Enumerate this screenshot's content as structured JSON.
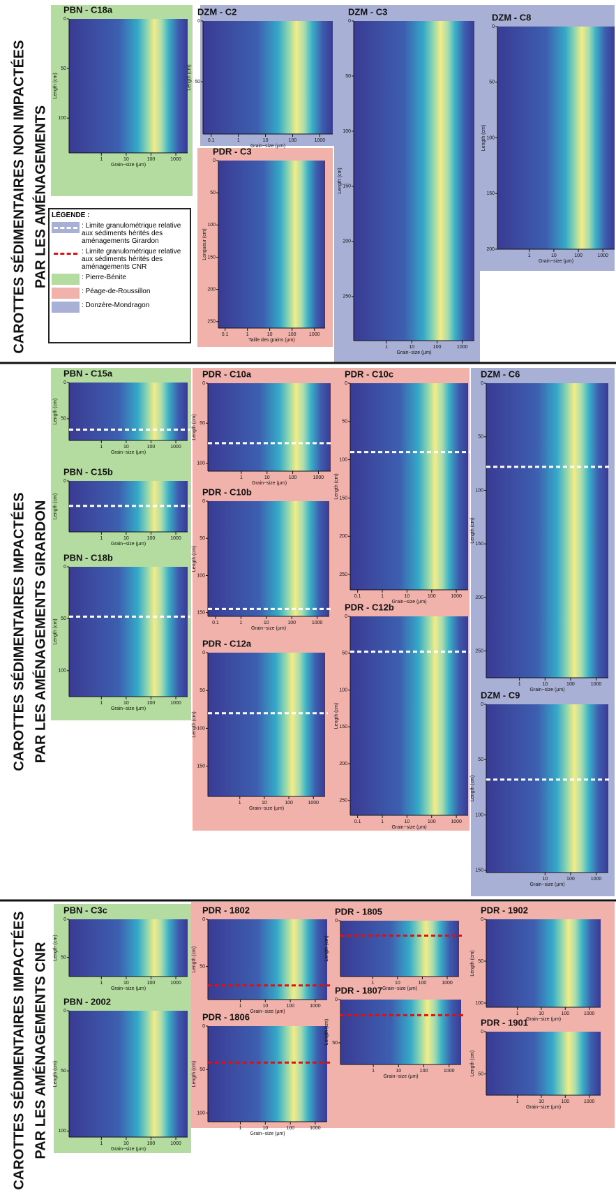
{
  "sections": [
    {
      "lines": [
        "CAROTTES SÉDIMENTAIRES NON IMPACTÉES",
        "PAR LES AMÉNAGEMENTS"
      ]
    },
    {
      "lines": [
        "CAROTTES SÉDIMENTAIRES IMPACTÉES",
        "PAR LES AMÉNAGEMENTS GIRARDON"
      ]
    },
    {
      "lines": [
        "CAROTTES SÉDIMENTAIRES IMPACTÉES",
        "PAR LES AMÉNAGEMENTS CNR"
      ]
    }
  ],
  "legend": {
    "title": "LÉGENDE :",
    "items": [
      ": Limite granulométrique relative aux sédiments hérités des aménagements Girardon",
      ": Limite granulométrique relative aux sédiments hérités des aménagements CNR",
      ": Pierre-Bénite",
      ": Péage-de-Roussillon",
      ": Donzère-Mondragon"
    ]
  },
  "panels": [
    {
      "title": "PBN - C18a",
      "ylabel": "Length (cm)",
      "xlabel": "Grain−size (µm)",
      "ylim": [
        0,
        135
      ],
      "yticks": [
        0,
        50,
        100
      ],
      "xlim": [
        0.05,
        3000
      ],
      "xticks": [
        1,
        10,
        100,
        1000
      ]
    },
    {
      "title": "DZM - C2",
      "ylabel": "Length (cm)",
      "xlabel": "Grain−size (µm)",
      "ylim": [
        0,
        93
      ],
      "yticks": [
        0,
        50
      ],
      "xlim": [
        0.05,
        3000
      ],
      "xticks": [
        0.1,
        1,
        10,
        100,
        1000
      ]
    },
    {
      "title": "DZM - C3",
      "ylabel": "Length (cm)",
      "xlabel": "Grain−size (µm)",
      "ylim": [
        0,
        290
      ],
      "yticks": [
        0,
        50,
        100,
        150,
        200,
        250
      ],
      "xlim": [
        0.05,
        3000
      ],
      "xticks": [
        1,
        10,
        100,
        1000
      ]
    },
    {
      "title": "DZM - C8",
      "ylabel": "Length (cm)",
      "xlabel": "Grain−size (µm)",
      "ylim": [
        0,
        200
      ],
      "yticks": [
        0,
        50,
        100,
        150,
        200
      ],
      "xlim": [
        0.05,
        3000
      ],
      "xticks": [
        1,
        10,
        100,
        1000
      ]
    },
    {
      "title": "PDR - C3",
      "ylabel": "Longueur (cm)",
      "xlabel": "Taille des grains (µm)",
      "ylim": [
        0,
        260
      ],
      "yticks": [
        0,
        50,
        100,
        150,
        200,
        250
      ],
      "xlim": [
        0.05,
        3000
      ],
      "xticks": [
        0.1,
        1,
        10,
        100,
        1000
      ]
    },
    {
      "title": "PBN - C15a",
      "ylabel": "Length (cm)",
      "xlabel": "Grain−size (µm)",
      "ylim": [
        0,
        80
      ],
      "yticks": [
        0,
        50
      ],
      "xlim": [
        0.05,
        3000
      ],
      "xticks": [
        1,
        10,
        100,
        1000
      ],
      "boundary": 65
    },
    {
      "title": "PBN - C15b",
      "ylabel": "Length (cm)",
      "xlabel": "Grain−size (µm)",
      "ylim": [
        0,
        45
      ],
      "yticks": [
        0
      ],
      "xlim": [
        0.05,
        3000
      ],
      "xticks": [
        1,
        10,
        100,
        1000
      ],
      "boundary": 22
    },
    {
      "title": "PBN - C18b",
      "ylabel": "Length (cm)",
      "xlabel": "Grain−size (µm)",
      "ylim": [
        0,
        125
      ],
      "yticks": [
        0,
        50,
        100
      ],
      "xlim": [
        0.05,
        3000
      ],
      "xticks": [
        1,
        10,
        100,
        1000
      ],
      "boundary": 48
    },
    {
      "title": "PDR - C10a",
      "ylabel": "Length (cm)",
      "xlabel": "Grain−size (µm)",
      "ylim": [
        0,
        110
      ],
      "yticks": [
        0,
        50,
        100
      ],
      "xlim": [
        0.05,
        3000
      ],
      "xticks": [
        1,
        10,
        100,
        1000
      ],
      "boundary": 75
    },
    {
      "title": "PDR - C10b",
      "ylabel": "Length (cm)",
      "xlabel": "Grain−size (µm)",
      "ylim": [
        0,
        155
      ],
      "yticks": [
        0,
        50,
        100,
        150
      ],
      "xlim": [
        0.05,
        3000
      ],
      "xticks": [
        0.1,
        1,
        10,
        100,
        1000
      ],
      "boundary": 145
    },
    {
      "title": "PDR - C12a",
      "ylabel": "Length (cm)",
      "xlabel": "Grain−size (µm)",
      "ylim": [
        0,
        190
      ],
      "yticks": [
        0,
        50,
        100,
        150
      ],
      "xlim": [
        0.05,
        3000
      ],
      "xticks": [
        1,
        10,
        100,
        1000
      ],
      "boundary": 80
    },
    {
      "title": "PDR - C10c",
      "ylabel": "Length (cm)",
      "xlabel": "Grain−size (µm)",
      "ylim": [
        0,
        270
      ],
      "yticks": [
        0,
        50,
        100,
        150,
        200,
        250
      ],
      "xlim": [
        0.05,
        3000
      ],
      "xticks": [
        0.1,
        1,
        10,
        100,
        1000
      ],
      "boundary": 90
    },
    {
      "title": "PDR - C12b",
      "ylabel": "Length (cm)",
      "xlabel": "Grain−size (µm)",
      "ylim": [
        0,
        270
      ],
      "yticks": [
        0,
        50,
        100,
        150,
        200,
        250
      ],
      "xlim": [
        0.05,
        3000
      ],
      "xticks": [
        0.1,
        1,
        10,
        100,
        1000
      ],
      "boundary": 48
    },
    {
      "title": "DZM - C6",
      "ylabel": "Length (cm)",
      "xlabel": "Grain−size (µm)",
      "ylim": [
        0,
        275
      ],
      "yticks": [
        0,
        50,
        100,
        150,
        200,
        250
      ],
      "xlim": [
        0.05,
        3000
      ],
      "xticks": [
        1,
        10,
        100,
        1000
      ],
      "boundary": 78
    },
    {
      "title": "DZM - C9",
      "ylabel": "Length (cm)",
      "xlabel": "Grain−size (µm)",
      "ylim": [
        0,
        152
      ],
      "yticks": [
        0,
        50,
        100,
        150
      ],
      "xlim": [
        0.05,
        3000
      ],
      "xticks": [
        10,
        100,
        1000
      ],
      "boundary": 68
    },
    {
      "title": "PBN - C3c",
      "ylabel": "Length (cm)",
      "xlabel": "Grain−size (µm)",
      "ylim": [
        0,
        75
      ],
      "yticks": [
        0,
        50
      ],
      "xlim": [
        0.05,
        3000
      ],
      "xticks": [
        1,
        10,
        100,
        1000
      ]
    },
    {
      "title": "PBN - 2002",
      "ylabel": "Length (cm)",
      "xlabel": "Grain−size (µm)",
      "ylim": [
        0,
        105
      ],
      "yticks": [
        0,
        50,
        100
      ],
      "xlim": [
        0.05,
        3000
      ],
      "xticks": [
        1,
        10,
        100,
        1000
      ]
    },
    {
      "title": "PDR - 1802",
      "ylabel": "Length (cm)",
      "xlabel": "Grain−size (µm)",
      "ylim": [
        0,
        85
      ],
      "yticks": [
        0,
        50
      ],
      "xlim": [
        0.05,
        3000
      ],
      "xticks": [
        1,
        10,
        100,
        1000
      ],
      "boundary": 70
    },
    {
      "title": "PDR - 1806",
      "ylabel": "Length (cm)",
      "xlabel": "Grain−size (µm)",
      "ylim": [
        0,
        110
      ],
      "yticks": [
        0,
        50,
        100
      ],
      "xlim": [
        0.05,
        3000
      ],
      "xticks": [
        1,
        10,
        100,
        1000
      ],
      "boundary": 42
    },
    {
      "title": "PDR - 1805",
      "ylabel": "Length (cm)",
      "xlabel": "Grain−size (µm)",
      "ylim": [
        0,
        45
      ],
      "yticks": [
        0
      ],
      "xlim": [
        0.05,
        3000
      ],
      "xticks": [
        1,
        10,
        100,
        1000
      ],
      "boundary": 12
    },
    {
      "title": "PDR - 1807",
      "ylabel": "Length (cm)",
      "xlabel": "Grain−size (µm)",
      "ylim": [
        0,
        75
      ],
      "yticks": [
        0,
        50
      ],
      "xlim": [
        0.05,
        3000
      ],
      "xticks": [
        1,
        10,
        100,
        1000
      ],
      "boundary": 18
    },
    {
      "title": "PDR - 1902",
      "ylabel": "Length (cm)",
      "xlabel": "Grain−size (µm)",
      "ylim": [
        0,
        105
      ],
      "yticks": [
        0,
        50,
        100
      ],
      "xlim": [
        0.05,
        3000
      ],
      "xticks": [
        1,
        10,
        100,
        1000
      ]
    },
    {
      "title": "PDR - 1901",
      "ylabel": "Length (cm)",
      "xlabel": "Grain−size (µm)",
      "ylim": [
        0,
        75
      ],
      "yticks": [
        0,
        50
      ],
      "xlim": [
        0.05,
        3000
      ],
      "xticks": [
        1,
        10,
        100,
        1000
      ]
    }
  ]
}
